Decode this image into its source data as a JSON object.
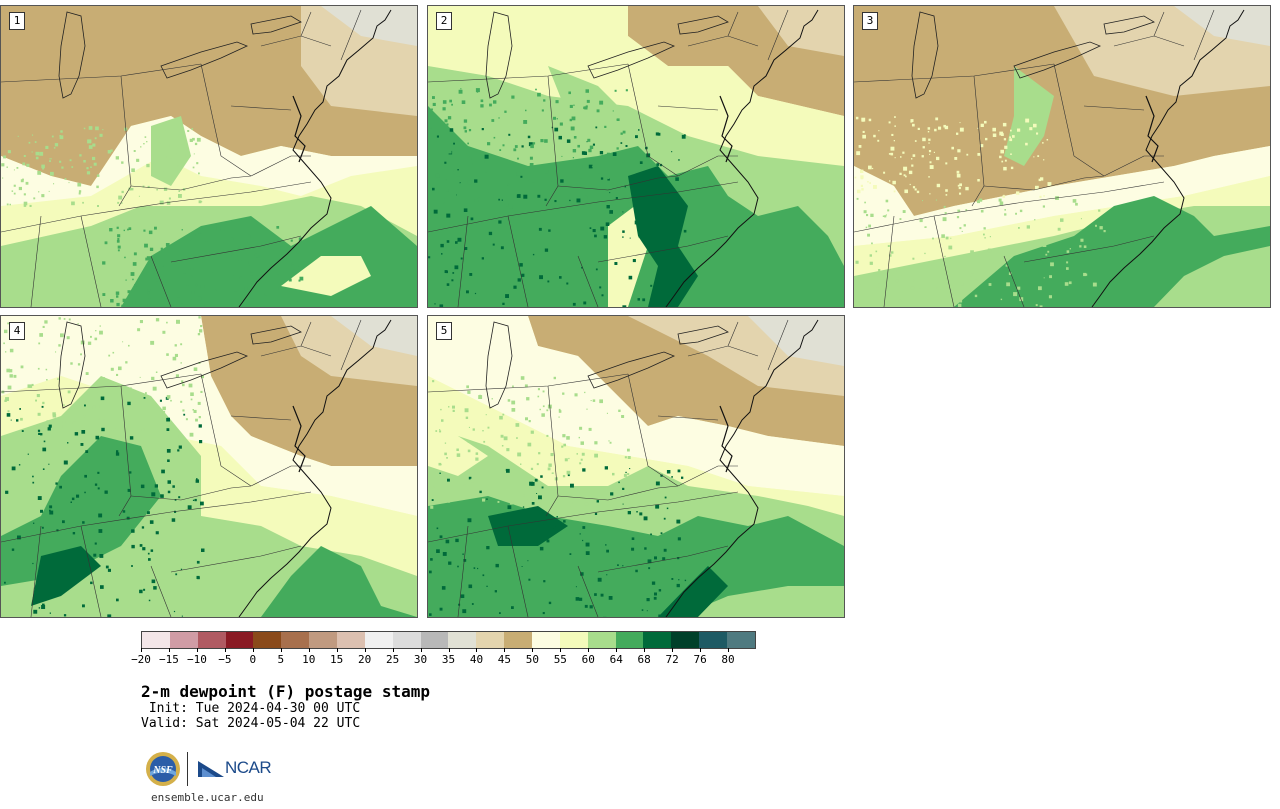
{
  "panels": [
    {
      "id": "1"
    },
    {
      "id": "2"
    },
    {
      "id": "3"
    },
    {
      "id": "4"
    },
    {
      "id": "5"
    }
  ],
  "colorbar": {
    "ticks": [
      "−20",
      "−15",
      "−10",
      "−5",
      "0",
      "5",
      "10",
      "15",
      "20",
      "25",
      "30",
      "35",
      "40",
      "45",
      "50",
      "55",
      "60",
      "64",
      "68",
      "72",
      "76",
      "80"
    ],
    "colors": [
      "#f3e6e8",
      "#d09ca5",
      "#b05a62",
      "#8a1a24",
      "#8a4a1a",
      "#a8704d",
      "#c09a80",
      "#dcc0b0",
      "#f0f0f0",
      "#dcdcdc",
      "#b8b8b8",
      "#e0e0d4",
      "#e3d4ae",
      "#c8ad74",
      "#fdfde2",
      "#f4fbbb",
      "#a8dd8c",
      "#44ab5c",
      "#006a3a",
      "#00402a",
      "#1e5a64",
      "#4f7a80"
    ]
  },
  "title": "2-m dewpoint (F) postage stamp",
  "init": " Init: Tue 2024-04-30 00 UTC",
  "valid": "Valid: Sat 2024-05-04 22 UTC",
  "logos": {
    "nsf": "nsf-logo",
    "ncar": "NCAR"
  },
  "website": "ensemble.ucar.edu",
  "palette": {
    "tan": "#c8ad74",
    "tan_light": "#e3d4ae",
    "gray": "#e0e0d4",
    "cream": "#fdfde2",
    "yellow": "#f4fbbb",
    "light_green": "#a8dd8c",
    "green": "#44ab5c",
    "dark_green": "#006a3a"
  }
}
